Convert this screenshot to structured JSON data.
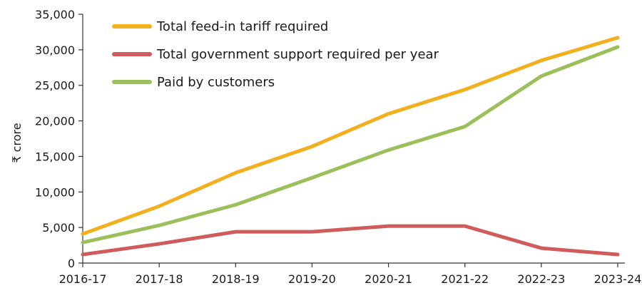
{
  "chart_data": {
    "type": "line",
    "title": "",
    "xlabel": "",
    "ylabel": "₹ crore",
    "ylim": [
      0,
      35000
    ],
    "yticks": [
      0,
      5000,
      10000,
      15000,
      20000,
      25000,
      30000,
      35000
    ],
    "ytick_labels": [
      "0",
      "5,000",
      "10,000",
      "15,000",
      "20,000",
      "25,000",
      "30,000",
      "35,000"
    ],
    "categories": [
      "2016-17",
      "2017-18",
      "2018-19",
      "2019-20",
      "2020-21",
      "2021-22",
      "2022-23",
      "2023-24"
    ],
    "grid": false,
    "legend_position": "top-left",
    "series": [
      {
        "name": "Total feed-in tariff required",
        "color": "#f2b01e",
        "values": [
          4100,
          8000,
          12700,
          16400,
          21000,
          24400,
          28500,
          31700
        ]
      },
      {
        "name": "Total government support required per year",
        "color": "#cf5b5b",
        "values": [
          1200,
          2700,
          4400,
          4400,
          5200,
          5200,
          2100,
          1200
        ]
      },
      {
        "name": "Paid by customers",
        "color": "#9bbf5a",
        "values": [
          2900,
          5300,
          8200,
          12000,
          15900,
          19200,
          26300,
          30400
        ]
      }
    ]
  }
}
